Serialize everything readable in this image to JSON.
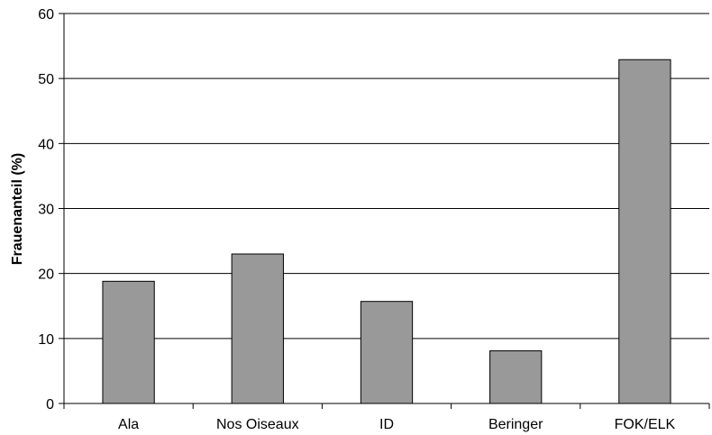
{
  "chart_data": {
    "type": "bar",
    "categories": [
      "Ala",
      "Nos Oiseaux",
      "ID",
      "Beringer",
      "FOK/ELK"
    ],
    "values": [
      18.8,
      23.0,
      15.7,
      8.1,
      52.9
    ],
    "ylabel": "Frauenanteil (%)",
    "xlabel": "",
    "ylim": [
      0,
      60
    ],
    "yticks": [
      "0",
      "10",
      "20",
      "30",
      "40",
      "50",
      "60"
    ],
    "grid": "horizontal",
    "bar_color": "#999999",
    "bar_stroke": "#000000"
  }
}
